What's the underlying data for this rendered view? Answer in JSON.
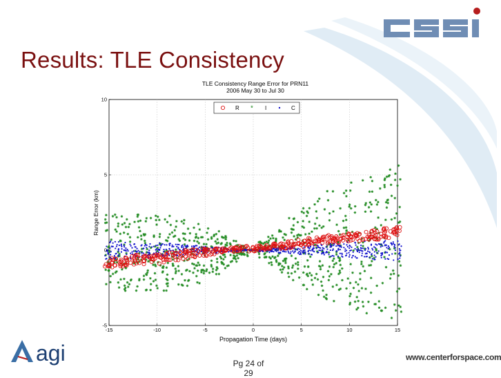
{
  "slide": {
    "title": "Results: TLE Consistency",
    "page_label": "Pg 24 of 29",
    "footer_url": "www.centerforspace.com",
    "logo_cssi_text": "CSSI",
    "logo_agi_text": "agi"
  },
  "colors": {
    "title": "#7a1010",
    "series_R": "#dd1111",
    "series_I": "#228b22",
    "series_C": "#1111cc",
    "swoosh": "#d6e6f2"
  },
  "chart_data": {
    "type": "scatter",
    "title": "TLE Consistency Range Error for PRN11",
    "subtitle": "2006 May 30 to Jul 30",
    "xlabel": "Propagation Time (days)",
    "ylabel": "Range Error (km)",
    "xlim": [
      -15,
      15
    ],
    "ylim": [
      -5,
      10
    ],
    "xticks": [
      -15,
      -10,
      -5,
      0,
      5,
      10,
      15
    ],
    "yticks": [
      -5,
      0,
      5,
      10
    ],
    "grid": true,
    "legend_position": "top-center",
    "series": [
      {
        "name": "R",
        "marker": "o",
        "color": "#dd1111",
        "x": [
          -15,
          -14,
          -13,
          -12,
          -11,
          -10,
          -9,
          -8,
          -7,
          -6,
          -5,
          -4,
          -3,
          -2,
          -1,
          0,
          1,
          2,
          3,
          4,
          5,
          6,
          7,
          8,
          9,
          10,
          11,
          12,
          13,
          14,
          15
        ],
        "ymin": [
          -1.2,
          -1.15,
          -1.1,
          -1.0,
          -0.95,
          -0.9,
          -0.8,
          -0.7,
          -0.6,
          -0.5,
          -0.4,
          -0.3,
          -0.2,
          -0.1,
          -0.05,
          -0.1,
          0.0,
          0.05,
          0.1,
          0.15,
          0.2,
          0.3,
          0.4,
          0.45,
          0.5,
          0.55,
          0.6,
          0.65,
          0.7,
          0.8,
          0.9
        ],
        "ymax": [
          -0.5,
          -0.45,
          -0.4,
          -0.3,
          -0.25,
          -0.2,
          -0.15,
          -0.1,
          0.0,
          0.05,
          0.1,
          0.15,
          0.2,
          0.25,
          0.3,
          0.3,
          0.35,
          0.45,
          0.55,
          0.6,
          0.7,
          0.8,
          0.9,
          1.0,
          1.05,
          1.1,
          1.2,
          1.3,
          1.35,
          1.45,
          1.55
        ]
      },
      {
        "name": "I",
        "marker": "*",
        "color": "#228b22",
        "x": [
          -15,
          -14,
          -13,
          -12,
          -11,
          -10,
          -9,
          -8,
          -7,
          -6,
          -5,
          -4,
          -3,
          -2,
          -1,
          0,
          1,
          2,
          3,
          4,
          5,
          6,
          7,
          8,
          9,
          10,
          11,
          12,
          13,
          14,
          15
        ],
        "ymin": [
          -2.5,
          -2.6,
          -2.7,
          -2.8,
          -2.8,
          -2.8,
          -2.7,
          -2.6,
          -2.4,
          -2.2,
          -1.9,
          -1.6,
          -1.2,
          -0.8,
          -0.4,
          0.0,
          -0.5,
          -1.0,
          -1.5,
          -2.0,
          -2.4,
          -2.8,
          -3.1,
          -3.4,
          -3.6,
          -3.8,
          -4.0,
          -4.2,
          -4.3,
          -4.5,
          -4.6
        ],
        "ymax": [
          2.4,
          2.4,
          2.4,
          2.4,
          2.4,
          2.4,
          2.3,
          2.2,
          2.0,
          1.8,
          1.6,
          1.3,
          1.0,
          0.7,
          0.3,
          0.0,
          0.6,
          1.2,
          1.8,
          2.4,
          2.9,
          3.3,
          3.7,
          4.0,
          4.3,
          4.6,
          4.9,
          5.1,
          5.3,
          5.5,
          5.7
        ]
      },
      {
        "name": "C",
        "marker": ".",
        "color": "#1111cc",
        "x": [
          -15,
          -14,
          -13,
          -12,
          -11,
          -10,
          -9,
          -8,
          -7,
          -6,
          -5,
          -4,
          -3,
          -2,
          -1,
          0,
          1,
          2,
          3,
          4,
          5,
          6,
          7,
          8,
          9,
          10,
          11,
          12,
          13,
          14,
          15
        ],
        "ymin": [
          -0.6,
          -0.6,
          -0.6,
          -0.5,
          -0.5,
          -0.5,
          -0.4,
          -0.4,
          -0.3,
          -0.3,
          -0.25,
          -0.2,
          -0.15,
          -0.1,
          -0.05,
          0.0,
          -0.1,
          -0.15,
          -0.2,
          -0.25,
          -0.3,
          -0.35,
          -0.4,
          -0.45,
          -0.5,
          -0.55,
          -0.6,
          -0.6,
          -0.65,
          -0.7,
          -0.7
        ],
        "ymax": [
          0.6,
          0.6,
          0.6,
          0.5,
          0.5,
          0.5,
          0.45,
          0.4,
          0.35,
          0.3,
          0.25,
          0.2,
          0.15,
          0.1,
          0.05,
          0.0,
          0.1,
          0.15,
          0.2,
          0.25,
          0.3,
          0.35,
          0.4,
          0.45,
          0.5,
          0.55,
          0.6,
          0.6,
          0.65,
          0.7,
          0.7
        ]
      }
    ]
  }
}
